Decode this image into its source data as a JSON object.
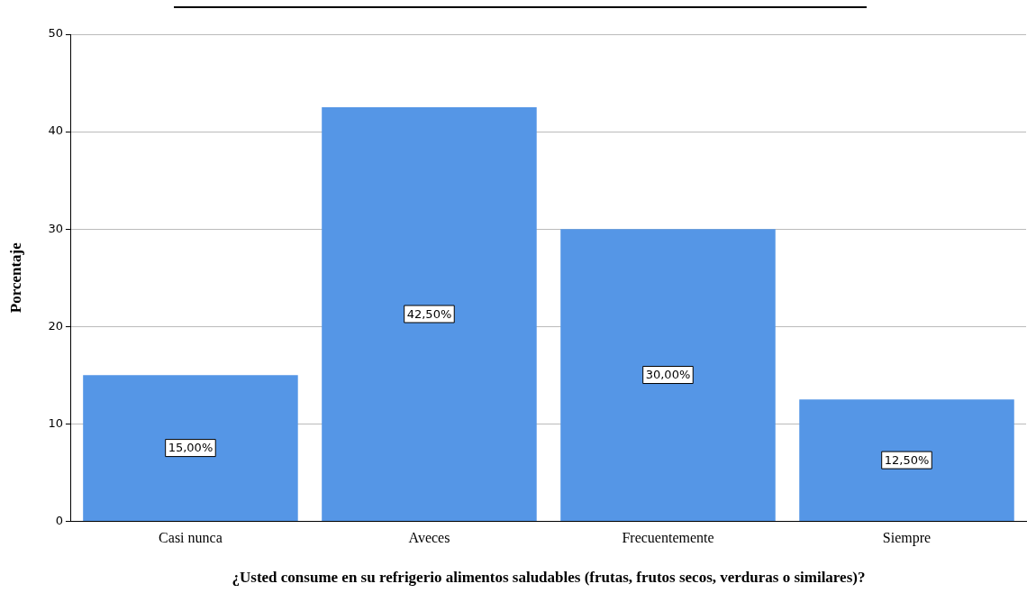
{
  "chart_data": {
    "type": "bar",
    "xlabel": "¿Usted consume en su refrigerio alimentos saludables (frutas, frutos secos, verduras o similares)?",
    "ylabel": "Porcentaje",
    "categories": [
      "Casi nunca",
      "Aveces",
      "Frecuentemente",
      "Siempre"
    ],
    "values": [
      15,
      42.5,
      30,
      12.5
    ],
    "color": "#5596e6",
    "value_labels": [
      "15,00%",
      "42,50%",
      "30,00%",
      "12,50%"
    ],
    "ylim": [
      0,
      50
    ],
    "yticks": [
      0,
      10,
      20,
      30,
      40,
      50
    ],
    "grid": "y",
    "legend": false
  }
}
